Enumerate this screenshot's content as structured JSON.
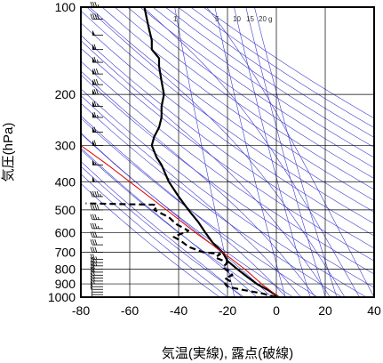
{
  "chart_data": {
    "type": "line",
    "title": "",
    "xlabel": "気温(実線), 露点(破線)",
    "ylabel": "気圧(hPa)",
    "xlim": [
      -80,
      40
    ],
    "ylim": [
      1000,
      100
    ],
    "y_scale": "log",
    "x_ticks": [
      -80,
      -60,
      -40,
      -20,
      0,
      20,
      40
    ],
    "y_ticks": [
      100,
      200,
      300,
      400,
      500,
      600,
      700,
      800,
      900,
      1000
    ],
    "x_tick_labels": [
      "-80",
      "-60",
      "-40",
      "-20",
      "0",
      "20",
      "40"
    ],
    "y_tick_labels": [
      "100",
      "200",
      "300",
      "400",
      "500",
      "600",
      "700",
      "800",
      "900",
      "1000"
    ],
    "grid": true,
    "mixing_ratio_labels": [
      "1",
      "5",
      "10",
      "15",
      "20",
      "g"
    ],
    "mixing_ratios": [
      1,
      5,
      10,
      15,
      20
    ],
    "series": [
      {
        "role": "temperature",
        "style": "solid",
        "color": "#000000",
        "points": [
          [
            1,
            1000
          ],
          [
            -3,
            950
          ],
          [
            -8,
            900
          ],
          [
            -12,
            850
          ],
          [
            -16,
            800
          ],
          [
            -20,
            750
          ],
          [
            -22,
            700
          ],
          [
            -26,
            650
          ],
          [
            -29,
            600
          ],
          [
            -32,
            550
          ],
          [
            -36,
            500
          ],
          [
            -40,
            450
          ],
          [
            -44,
            400
          ],
          [
            -47,
            350
          ],
          [
            -49,
            330
          ],
          [
            -51,
            300
          ],
          [
            -50,
            280
          ],
          [
            -48,
            260
          ],
          [
            -47,
            240
          ],
          [
            -47,
            220
          ],
          [
            -46,
            200
          ],
          [
            -47,
            180
          ],
          [
            -48,
            160
          ],
          [
            -48,
            150
          ],
          [
            -51,
            140
          ],
          [
            -51,
            130
          ],
          [
            -52,
            120
          ],
          [
            -53,
            110
          ],
          [
            -54,
            100
          ]
        ]
      },
      {
        "role": "dewpoint",
        "style": "dashed",
        "color": "#000000",
        "points": [
          [
            0,
            1000
          ],
          [
            -6,
            970
          ],
          [
            -15,
            940
          ],
          [
            -20,
            920
          ],
          [
            -21,
            900
          ],
          [
            -19,
            880
          ],
          [
            -21,
            860
          ],
          [
            -18,
            840
          ],
          [
            -19,
            820
          ],
          [
            -22,
            790
          ],
          [
            -20,
            760
          ],
          [
            -25,
            730
          ],
          [
            -23,
            710
          ],
          [
            -30,
            700
          ],
          [
            -36,
            670
          ],
          [
            -39,
            640
          ],
          [
            -42,
            620
          ],
          [
            -36,
            590
          ],
          [
            -41,
            560
          ],
          [
            -44,
            530
          ],
          [
            -50,
            500
          ],
          [
            -49,
            490
          ],
          [
            -50,
            480
          ],
          [
            -78,
            475
          ]
        ]
      },
      {
        "role": "parcel",
        "style": "solid",
        "color": "#e00000",
        "points": [
          [
            1,
            1000
          ],
          [
            -6,
            900
          ],
          [
            -13,
            800
          ],
          [
            -22,
            700
          ],
          [
            -33,
            600
          ],
          [
            -45,
            500
          ],
          [
            -60,
            400
          ],
          [
            -70,
            345
          ],
          [
            -80,
            300
          ]
        ]
      }
    ],
    "wind_barbs": [
      {
        "p": 1000,
        "speed": 5
      },
      {
        "p": 980,
        "speed": 5
      },
      {
        "p": 960,
        "speed": 10
      },
      {
        "p": 940,
        "speed": 10
      },
      {
        "p": 920,
        "speed": 10
      },
      {
        "p": 900,
        "speed": 15
      },
      {
        "p": 880,
        "speed": 15
      },
      {
        "p": 860,
        "speed": 15
      },
      {
        "p": 840,
        "speed": 20
      },
      {
        "p": 820,
        "speed": 20
      },
      {
        "p": 800,
        "speed": 20
      },
      {
        "p": 780,
        "speed": 25
      },
      {
        "p": 760,
        "speed": 25
      },
      {
        "p": 740,
        "speed": 25
      },
      {
        "p": 700,
        "speed": 30
      },
      {
        "p": 660,
        "speed": 30
      },
      {
        "p": 620,
        "speed": 30
      },
      {
        "p": 580,
        "speed": 35
      },
      {
        "p": 540,
        "speed": 35
      },
      {
        "p": 500,
        "speed": 40
      },
      {
        "p": 450,
        "speed": 45
      },
      {
        "p": 400,
        "speed": 50
      },
      {
        "p": 350,
        "speed": 55
      },
      {
        "p": 300,
        "speed": 60
      },
      {
        "p": 270,
        "speed": 60
      },
      {
        "p": 240,
        "speed": 65
      },
      {
        "p": 220,
        "speed": 65
      },
      {
        "p": 200,
        "speed": 70
      },
      {
        "p": 185,
        "speed": 70
      },
      {
        "p": 170,
        "speed": 70
      },
      {
        "p": 155,
        "speed": 65
      },
      {
        "p": 140,
        "speed": 60
      },
      {
        "p": 125,
        "speed": 50
      },
      {
        "p": 110,
        "speed": 40
      },
      {
        "p": 100,
        "speed": 35
      }
    ],
    "colors": {
      "isotherm": "#000000",
      "adiabat": "#3a3ad0",
      "mixing_ratio": "#3a3ad0",
      "parcel": "#e00000",
      "frame": "#000000"
    }
  }
}
